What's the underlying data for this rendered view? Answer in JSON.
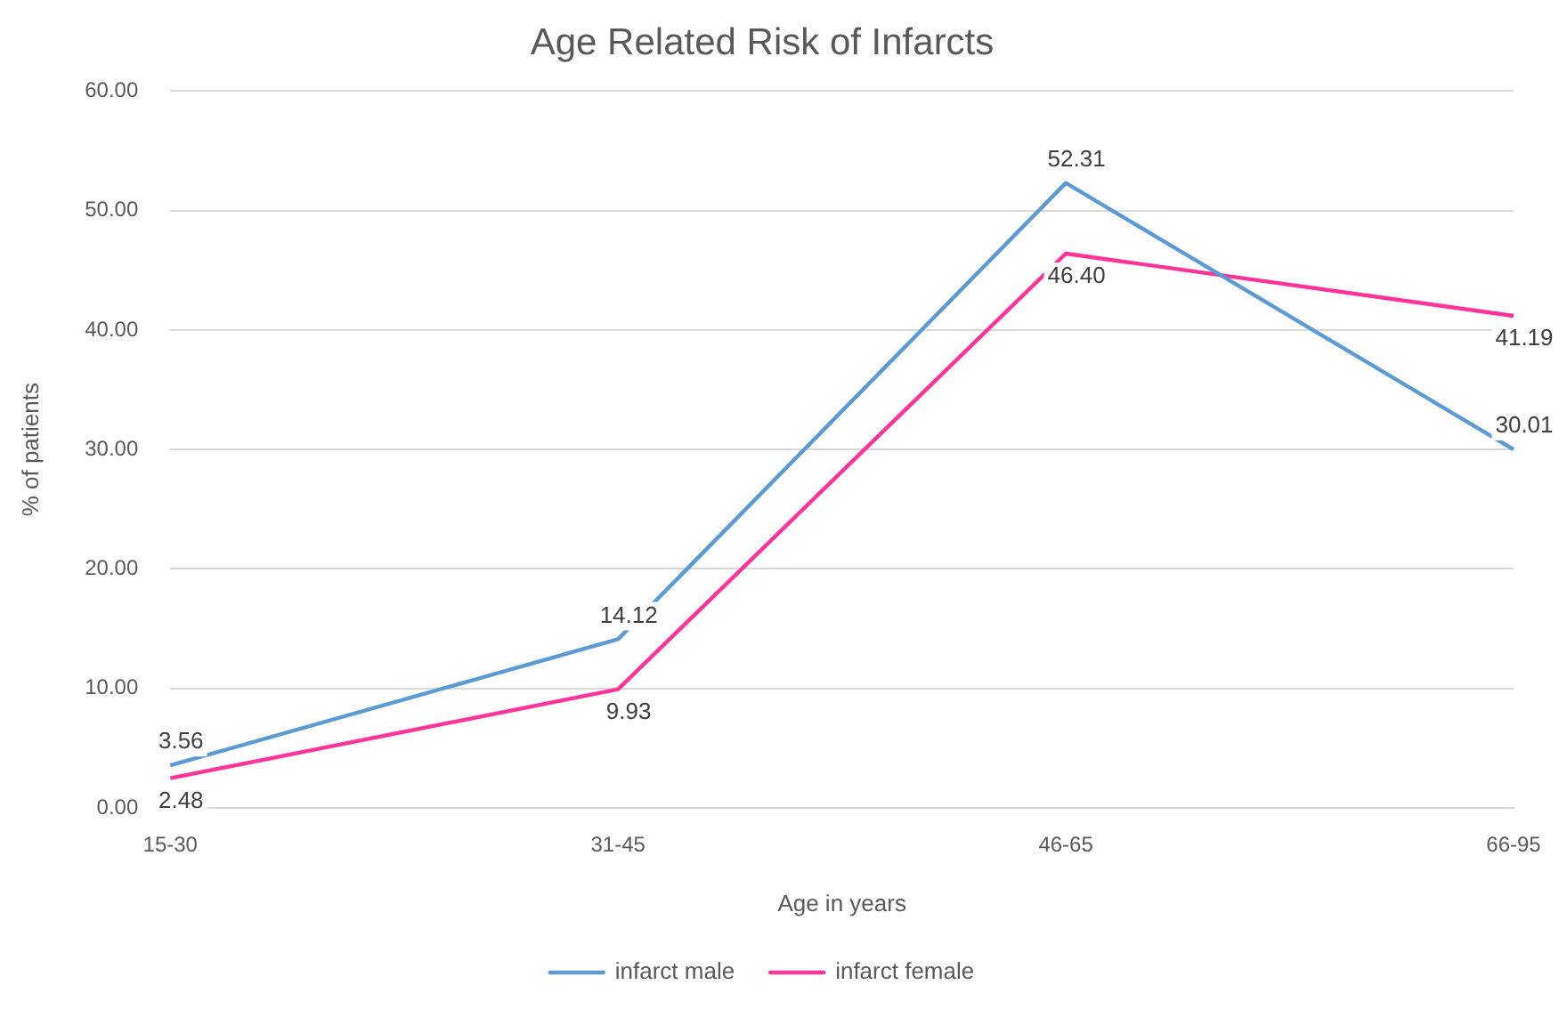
{
  "chart_data": {
    "type": "line",
    "title": "Age Related Risk of Infarcts",
    "xlabel": "Age in years",
    "ylabel": "% of patients",
    "categories": [
      "15-30",
      "31-45",
      "46-65",
      "66-95"
    ],
    "series": [
      {
        "name": "infarct male",
        "color": "#5b9bd5",
        "values": [
          3.56,
          14.12,
          52.31,
          30.01
        ],
        "value_labels": [
          "3.56",
          "14.12",
          "52.31",
          "30.01"
        ]
      },
      {
        "name": "infarct female",
        "color": "#ff3399",
        "values": [
          2.48,
          9.93,
          46.4,
          41.19
        ],
        "value_labels": [
          "2.48",
          "9.93",
          "46.40",
          "41.19"
        ]
      }
    ],
    "ylim": [
      0,
      60
    ],
    "yticks": [
      {
        "value": 0,
        "label": "0.00"
      },
      {
        "value": 10,
        "label": "10.00"
      },
      {
        "value": 20,
        "label": "20.00"
      },
      {
        "value": 30,
        "label": "30.00"
      },
      {
        "value": 40,
        "label": "40.00"
      },
      {
        "value": 50,
        "label": "50.00"
      },
      {
        "value": 60,
        "label": "60.00"
      }
    ],
    "grid": "y",
    "legend": "bottom",
    "marker": "none",
    "line_style": "solid"
  }
}
